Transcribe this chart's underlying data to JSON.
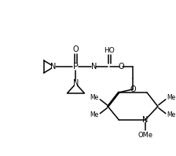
{
  "bg": "#ffffff",
  "lc": "#000000",
  "figsize": [
    2.24,
    1.99
  ],
  "dpi": 100,
  "xlim": [
    0,
    224
  ],
  "ylim": [
    0,
    199
  ]
}
